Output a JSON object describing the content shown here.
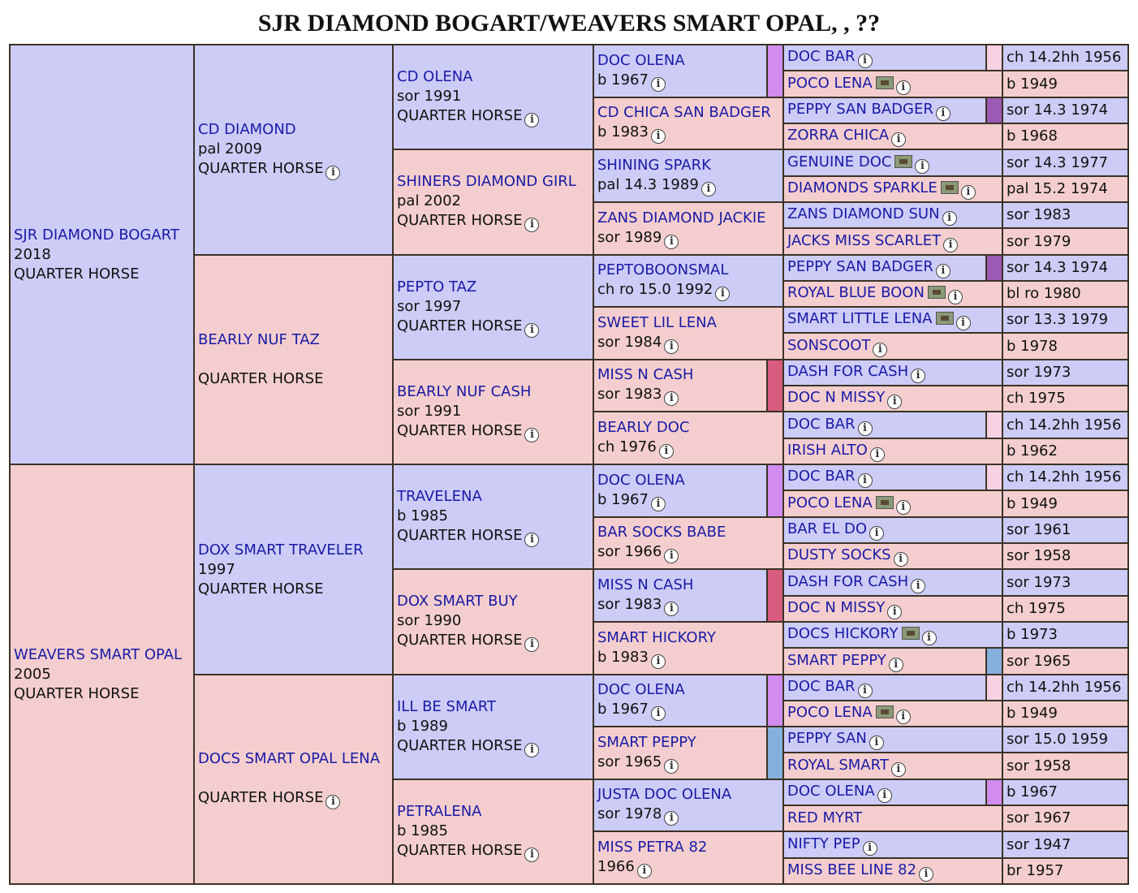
{
  "title": "SJR DIAMOND BOGART/WEAVERS SMART OPAL, , ??",
  "colors": {
    "male": "#ccccf7",
    "female": "#f4cece",
    "link": "#1a1aa6",
    "border": "#3b3226",
    "strip_pink": "#f6d2e2",
    "strip_violet": "#d28cef",
    "strip_purple": "#9c5ab4",
    "strip_red": "#d85c80",
    "strip_blue": "#86b0dc"
  },
  "icons": {
    "info": "info-circle-icon",
    "photo": "photo-icon"
  },
  "gen1": [
    {
      "name": "SJR DIAMOND BOGART",
      "line2": "2018",
      "line3": "QUARTER HORSE",
      "sex": "male",
      "info": false
    },
    {
      "name": "WEAVERS SMART OPAL",
      "line2": "2005",
      "line3": "QUARTER HORSE",
      "sex": "female",
      "info": false
    }
  ],
  "gen2": [
    {
      "name": "CD DIAMOND",
      "line2": "pal 2009",
      "line3": "QUARTER HORSE",
      "sex": "male",
      "info": true
    },
    {
      "name": "BEARLY NUF TAZ",
      "line2": "",
      "line3": "QUARTER HORSE",
      "sex": "female",
      "info": false
    },
    {
      "name": "DOX SMART TRAVELER",
      "line2": "1997",
      "line3": "QUARTER HORSE",
      "sex": "male",
      "info": false
    },
    {
      "name": "DOCS SMART OPAL LENA",
      "line2": "",
      "line3": "QUARTER HORSE",
      "sex": "female",
      "info": true
    }
  ],
  "gen3": [
    {
      "name": "CD OLENA",
      "line2": "sor 1991",
      "line3": "QUARTER HORSE",
      "sex": "male"
    },
    {
      "name": "SHINERS DIAMOND GIRL",
      "line2": "pal 2002",
      "line3": "QUARTER HORSE",
      "sex": "female"
    },
    {
      "name": "PEPTO TAZ",
      "line2": "sor 1997",
      "line3": "QUARTER HORSE",
      "sex": "male"
    },
    {
      "name": "BEARLY NUF CASH",
      "line2": "sor 1991",
      "line3": "QUARTER HORSE",
      "sex": "female"
    },
    {
      "name": "TRAVELENA",
      "line2": "b 1985",
      "line3": "QUARTER HORSE",
      "sex": "male"
    },
    {
      "name": "DOX SMART BUY",
      "line2": "sor 1990",
      "line3": "QUARTER HORSE",
      "sex": "female"
    },
    {
      "name": "ILL BE SMART",
      "line2": "b 1989",
      "line3": "QUARTER HORSE",
      "sex": "male"
    },
    {
      "name": "PETRALENA",
      "line2": "b 1985",
      "line3": "QUARTER HORSE",
      "sex": "female"
    }
  ],
  "gen4": [
    {
      "name": "DOC OLENA",
      "line2": "b 1967",
      "sex": "male"
    },
    {
      "name": "CD CHICA SAN BADGER",
      "line2": "b 1983",
      "sex": "female"
    },
    {
      "name": "SHINING SPARK",
      "line2": "pal 14.3 1989",
      "sex": "male"
    },
    {
      "name": "ZANS DIAMOND JACKIE",
      "line2": "sor 1989",
      "sex": "female"
    },
    {
      "name": "PEPTOBOONSMAL",
      "line2": "ch ro 15.0 1992",
      "sex": "male"
    },
    {
      "name": "SWEET LIL LENA",
      "line2": "sor 1984",
      "sex": "female"
    },
    {
      "name": "MISS N CASH",
      "line2": "sor 1983",
      "sex": "female"
    },
    {
      "name": "BEARLY DOC",
      "line2": "ch 1976",
      "sex": "female"
    },
    {
      "name": "DOC OLENA",
      "line2": "b 1967",
      "sex": "male"
    },
    {
      "name": "BAR SOCKS BABE",
      "line2": "sor 1966",
      "sex": "female"
    },
    {
      "name": "MISS N CASH",
      "line2": "sor 1983",
      "sex": "male"
    },
    {
      "name": "SMART HICKORY",
      "line2": "b 1983",
      "sex": "female"
    },
    {
      "name": "DOC OLENA",
      "line2": "b 1967",
      "sex": "male"
    },
    {
      "name": "SMART PEPPY",
      "line2": "sor 1965",
      "sex": "female"
    },
    {
      "name": "JUSTA DOC OLENA",
      "line2": "sor 1978",
      "sex": "male"
    },
    {
      "name": "MISS PETRA 82",
      "line2": "1966",
      "sex": "female"
    }
  ],
  "gen5": [
    {
      "name": "DOC BAR",
      "photo": false,
      "info": true,
      "sex": "male"
    },
    {
      "name": "POCO LENA",
      "photo": true,
      "info": true,
      "sex": "female"
    },
    {
      "name": "PEPPY SAN BADGER",
      "photo": false,
      "info": true,
      "sex": "male"
    },
    {
      "name": "ZORRA CHICA",
      "photo": false,
      "info": true,
      "sex": "female"
    },
    {
      "name": "GENUINE DOC",
      "photo": true,
      "info": true,
      "sex": "male"
    },
    {
      "name": "DIAMONDS SPARKLE",
      "photo": true,
      "info": true,
      "sex": "female"
    },
    {
      "name": "ZANS DIAMOND SUN",
      "photo": false,
      "info": true,
      "sex": "male"
    },
    {
      "name": "JACKS MISS SCARLET",
      "photo": false,
      "info": true,
      "sex": "female"
    },
    {
      "name": "PEPPY SAN BADGER",
      "photo": false,
      "info": true,
      "sex": "male"
    },
    {
      "name": "ROYAL BLUE BOON",
      "photo": true,
      "info": true,
      "sex": "female"
    },
    {
      "name": "SMART LITTLE LENA",
      "photo": true,
      "info": true,
      "sex": "male"
    },
    {
      "name": "SONSCOOT",
      "photo": false,
      "info": true,
      "sex": "female"
    },
    {
      "name": "DASH FOR CASH",
      "photo": false,
      "info": true,
      "sex": "male"
    },
    {
      "name": "DOC N MISSY",
      "photo": false,
      "info": true,
      "sex": "female"
    },
    {
      "name": "DOC BAR",
      "photo": false,
      "info": true,
      "sex": "male"
    },
    {
      "name": "IRISH ALTO",
      "photo": false,
      "info": true,
      "sex": "female"
    },
    {
      "name": "DOC BAR",
      "photo": false,
      "info": true,
      "sex": "male"
    },
    {
      "name": "POCO LENA",
      "photo": true,
      "info": true,
      "sex": "female"
    },
    {
      "name": "BAR EL DO",
      "photo": false,
      "info": true,
      "sex": "male"
    },
    {
      "name": "DUSTY SOCKS",
      "photo": false,
      "info": true,
      "sex": "female"
    },
    {
      "name": "DASH FOR CASH",
      "photo": false,
      "info": true,
      "sex": "male"
    },
    {
      "name": "DOC N MISSY",
      "photo": false,
      "info": true,
      "sex": "female"
    },
    {
      "name": "DOCS HICKORY",
      "photo": true,
      "info": true,
      "sex": "male"
    },
    {
      "name": "SMART PEPPY",
      "photo": false,
      "info": true,
      "sex": "female"
    },
    {
      "name": "DOC BAR",
      "photo": false,
      "info": true,
      "sex": "male"
    },
    {
      "name": "POCO LENA",
      "photo": true,
      "info": true,
      "sex": "female"
    },
    {
      "name": "PEPPY SAN",
      "photo": false,
      "info": true,
      "sex": "male"
    },
    {
      "name": "ROYAL SMART",
      "photo": false,
      "info": true,
      "sex": "female"
    },
    {
      "name": "DOC OLENA",
      "photo": false,
      "info": true,
      "sex": "male"
    },
    {
      "name": "RED MYRT",
      "photo": false,
      "info": false,
      "sex": "female"
    },
    {
      "name": "NIFTY PEP",
      "photo": false,
      "info": true,
      "sex": "male"
    },
    {
      "name": "MISS BEE LINE 82",
      "photo": false,
      "info": true,
      "sex": "female"
    }
  ],
  "gen6": [
    {
      "text": "ch 14.2hh 1956",
      "sex": "male"
    },
    {
      "text": "b 1949",
      "sex": "female"
    },
    {
      "text": "sor 14.3 1974",
      "sex": "male"
    },
    {
      "text": "b 1968",
      "sex": "female"
    },
    {
      "text": "sor 14.3 1977",
      "sex": "male"
    },
    {
      "text": "pal 15.2 1974",
      "sex": "female"
    },
    {
      "text": "sor 1983",
      "sex": "male"
    },
    {
      "text": "sor 1979",
      "sex": "female"
    },
    {
      "text": "sor 14.3 1974",
      "sex": "male"
    },
    {
      "text": "bl ro 1980",
      "sex": "female"
    },
    {
      "text": "sor 13.3 1979",
      "sex": "male"
    },
    {
      "text": "b 1978",
      "sex": "female"
    },
    {
      "text": "sor 1973",
      "sex": "male"
    },
    {
      "text": "ch 1975",
      "sex": "female"
    },
    {
      "text": "ch 14.2hh 1956",
      "sex": "male"
    },
    {
      "text": "b 1962",
      "sex": "female"
    },
    {
      "text": "ch 14.2hh 1956",
      "sex": "male"
    },
    {
      "text": "b 1949",
      "sex": "female"
    },
    {
      "text": "sor 1961",
      "sex": "male"
    },
    {
      "text": "sor 1958",
      "sex": "female"
    },
    {
      "text": "sor 1973",
      "sex": "male"
    },
    {
      "text": "ch 1975",
      "sex": "female"
    },
    {
      "text": "b 1973",
      "sex": "male"
    },
    {
      "text": "sor 1965",
      "sex": "female"
    },
    {
      "text": "ch 14.2hh 1956",
      "sex": "male"
    },
    {
      "text": "b 1949",
      "sex": "female"
    },
    {
      "text": "sor 15.0 1959",
      "sex": "male"
    },
    {
      "text": "sor 1958",
      "sex": "female"
    },
    {
      "text": "b 1967",
      "sex": "male"
    },
    {
      "text": "sor 1967",
      "sex": "female"
    },
    {
      "text": "sor 1947",
      "sex": "male"
    },
    {
      "text": "br 1957",
      "sex": "female"
    }
  ]
}
